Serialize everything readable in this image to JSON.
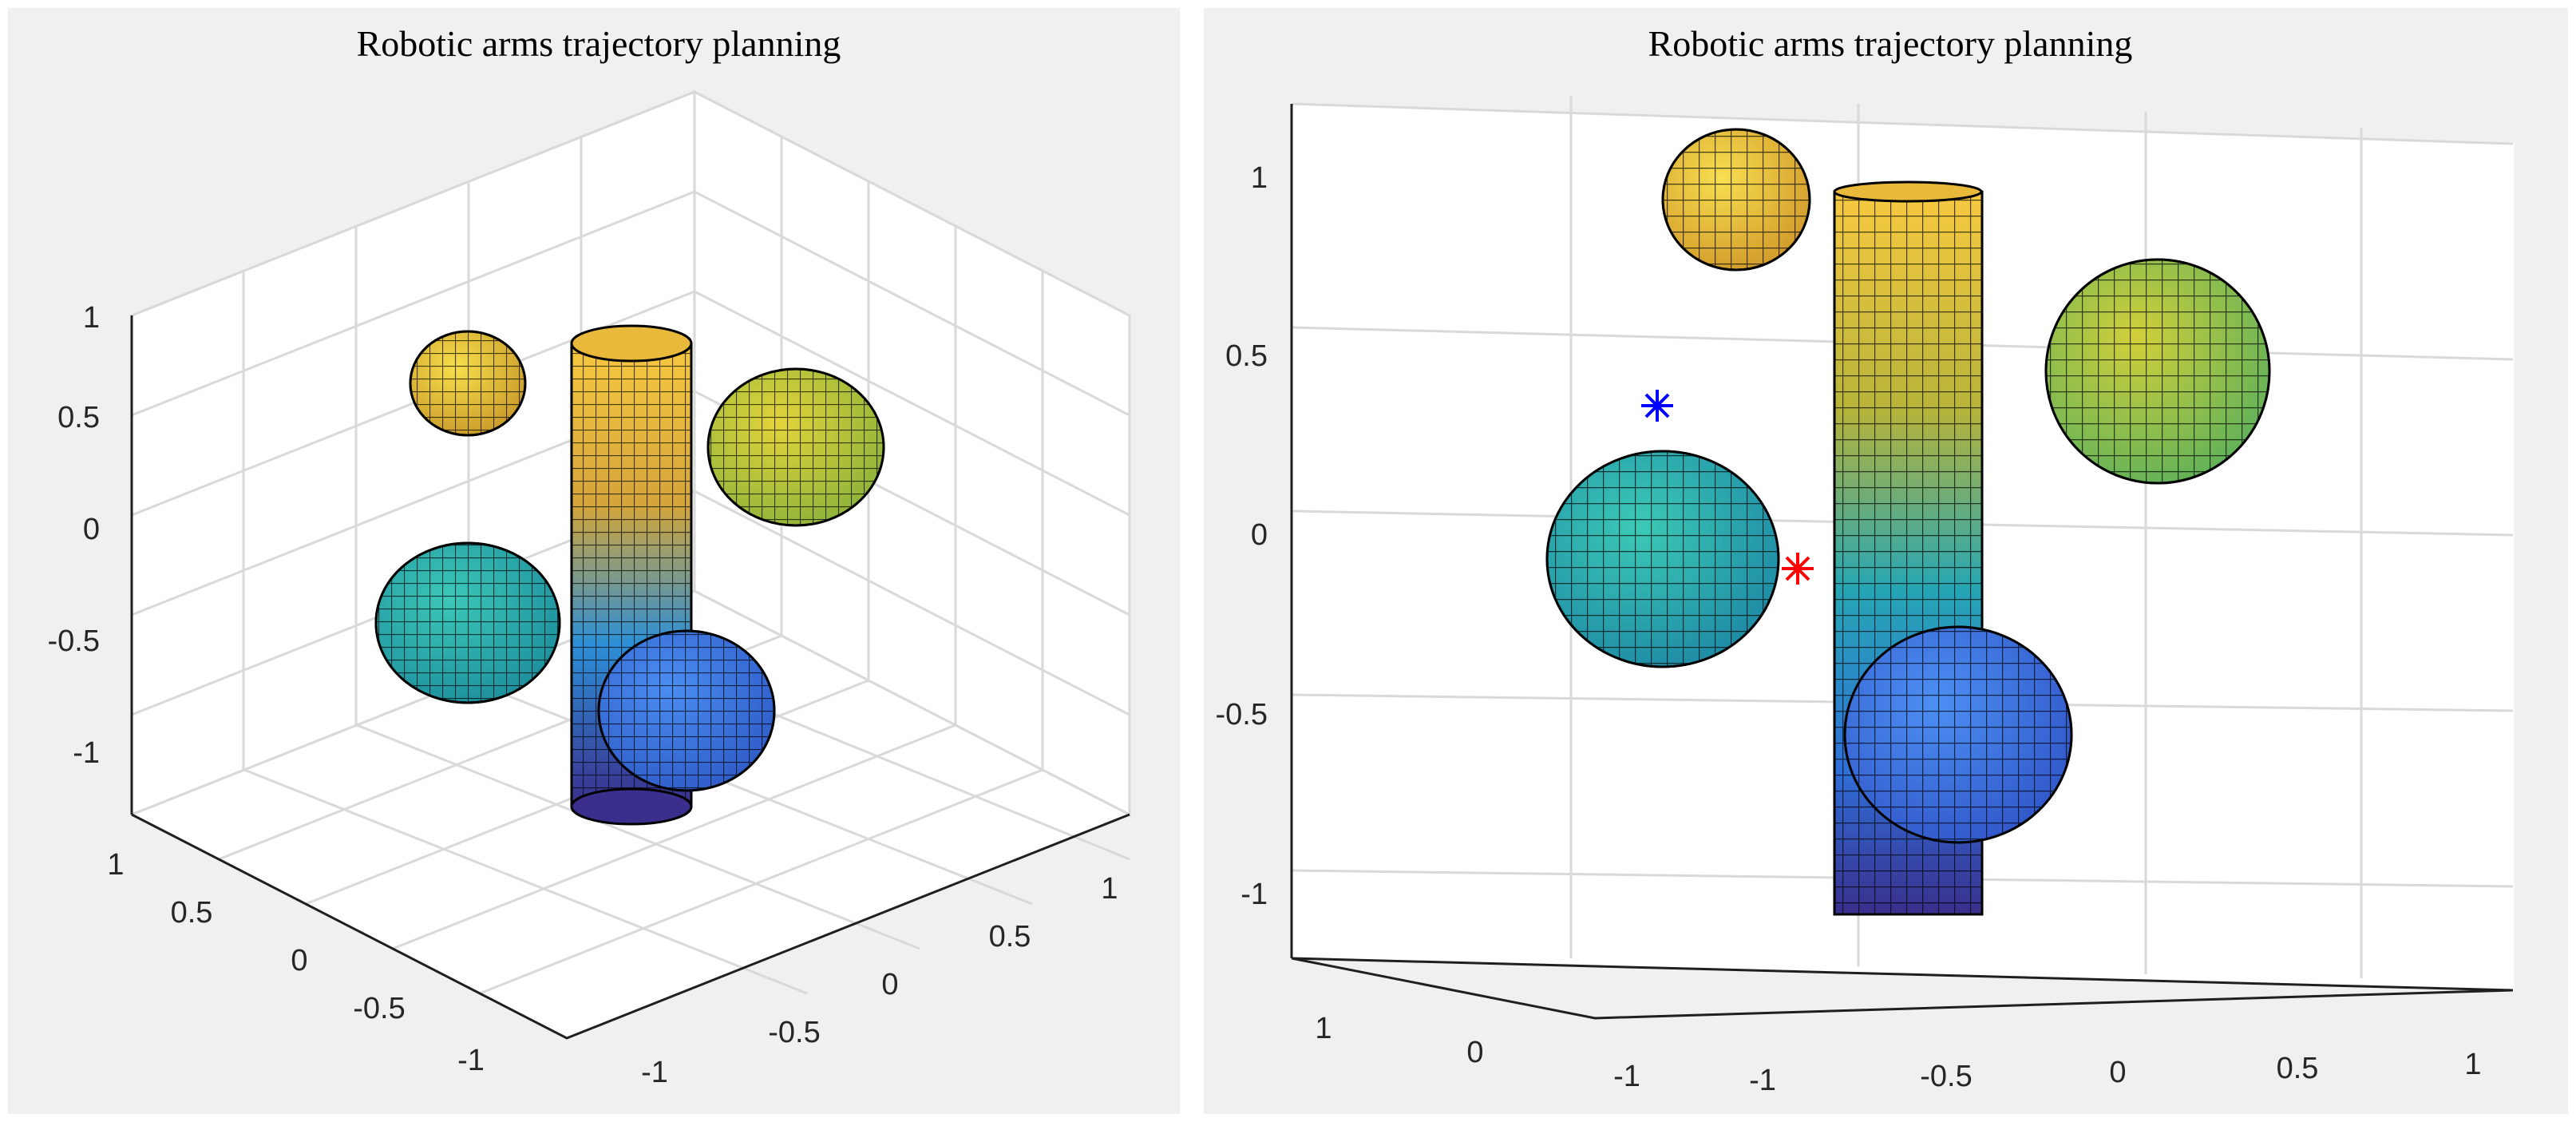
{
  "chart_data": [
    {
      "type": "3d-surface",
      "title": "Robotic arms trajectory planning",
      "view": "isometric",
      "z_ticks": [
        "1",
        "0.5",
        "0",
        "-0.5",
        "-1"
      ],
      "x_ticks": [
        "1",
        "0.5",
        "0",
        "-0.5",
        "-1"
      ],
      "y_ticks": [
        "-1",
        "-0.5",
        "0",
        "0.5",
        "1"
      ],
      "xlim": [
        -1,
        1
      ],
      "ylim": [
        -1,
        1
      ],
      "zlim": [
        -1,
        1
      ],
      "grid": true,
      "objects": [
        {
          "kind": "cylinder",
          "color_top": "#f2c94a",
          "color_bottom": "#3e2e8a"
        },
        {
          "kind": "sphere",
          "color": "#e8c63a"
        },
        {
          "kind": "sphere",
          "color": "#c8c83a"
        },
        {
          "kind": "sphere",
          "color": "#2bb3b3"
        },
        {
          "kind": "sphere",
          "color": "#3b7fe8"
        }
      ]
    },
    {
      "type": "3d-surface",
      "title": "Robotic arms  trajectory planning",
      "view": "front",
      "z_ticks": [
        "1",
        "0.5",
        "0",
        "-0.5",
        "-1"
      ],
      "x_ticks": [
        "-1",
        "-0.5",
        "0",
        "0.5",
        "1"
      ],
      "y_ticks": [
        "1",
        "0",
        "-1"
      ],
      "xlim": [
        -1,
        1
      ],
      "ylim": [
        -1,
        1
      ],
      "zlim": [
        -1,
        1
      ],
      "grid": true,
      "markers": [
        {
          "symbol": "*",
          "color": "#0000ff",
          "z": 0.37
        },
        {
          "symbol": "*",
          "color": "#ff0000",
          "z": -0.09
        }
      ],
      "objects": [
        {
          "kind": "cylinder",
          "color_top": "#f2c94a",
          "color_bottom": "#3e2e8a"
        },
        {
          "kind": "sphere",
          "color": "#f0c93a"
        },
        {
          "kind": "sphere",
          "color": "#b5c93a"
        },
        {
          "kind": "sphere",
          "color": "#2ab3b8"
        },
        {
          "kind": "sphere",
          "color": "#3c7ae8"
        }
      ]
    }
  ]
}
